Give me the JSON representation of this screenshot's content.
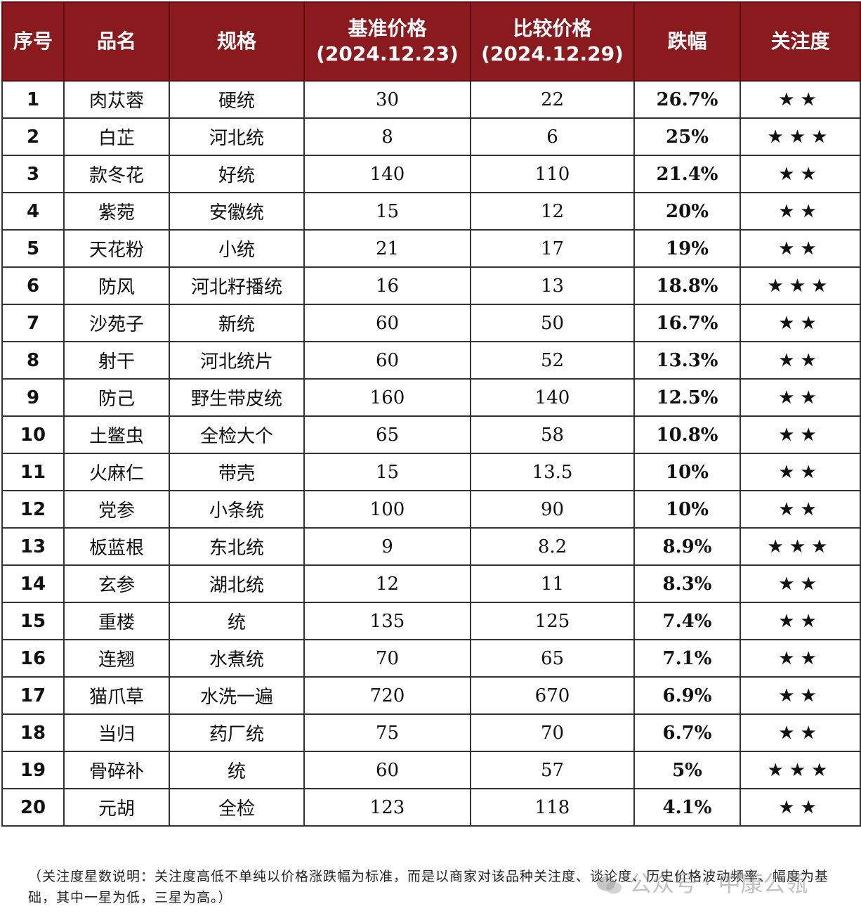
{
  "table": {
    "headers": {
      "seq": "序号",
      "name": "品名",
      "spec": "规格",
      "base_price_title": "基准价格",
      "base_price_date": "(2024.12.23)",
      "compare_price_title": "比较价格",
      "compare_price_date": "(2024.12.29)",
      "change": "跌幅",
      "attention": "关注度"
    },
    "rows": [
      {
        "seq": "1",
        "name": "肉苁蓉",
        "spec": "硬统",
        "base": "30",
        "compare": "22",
        "change": "26.7%",
        "stars": "★★"
      },
      {
        "seq": "2",
        "name": "白芷",
        "spec": "河北统",
        "base": "8",
        "compare": "6",
        "change": "25%",
        "stars": "★★★"
      },
      {
        "seq": "3",
        "name": "款冬花",
        "spec": "好统",
        "base": "140",
        "compare": "110",
        "change": "21.4%",
        "stars": "★★"
      },
      {
        "seq": "4",
        "name": "紫菀",
        "spec": "安徽统",
        "base": "15",
        "compare": "12",
        "change": "20%",
        "stars": "★★"
      },
      {
        "seq": "5",
        "name": "天花粉",
        "spec": "小统",
        "base": "21",
        "compare": "17",
        "change": "19%",
        "stars": "★★"
      },
      {
        "seq": "6",
        "name": "防风",
        "spec": "河北籽播统",
        "base": "16",
        "compare": "13",
        "change": "18.8%",
        "stars": "★★★"
      },
      {
        "seq": "7",
        "name": "沙苑子",
        "spec": "新统",
        "base": "60",
        "compare": "50",
        "change": "16.7%",
        "stars": "★★"
      },
      {
        "seq": "8",
        "name": "射干",
        "spec": "河北统片",
        "base": "60",
        "compare": "52",
        "change": "13.3%",
        "stars": "★★"
      },
      {
        "seq": "9",
        "name": "防己",
        "spec": "野生带皮统",
        "base": "160",
        "compare": "140",
        "change": "12.5%",
        "stars": "★★"
      },
      {
        "seq": "10",
        "name": "土鳖虫",
        "spec": "全检大个",
        "base": "65",
        "compare": "58",
        "change": "10.8%",
        "stars": "★★"
      },
      {
        "seq": "11",
        "name": "火麻仁",
        "spec": "带壳",
        "base": "15",
        "compare": "13.5",
        "change": "10%",
        "stars": "★★"
      },
      {
        "seq": "12",
        "name": "党参",
        "spec": "小条统",
        "base": "100",
        "compare": "90",
        "change": "10%",
        "stars": "★★"
      },
      {
        "seq": "13",
        "name": "板蓝根",
        "spec": "东北统",
        "base": "9",
        "compare": "8.2",
        "change": "8.9%",
        "stars": "★★★"
      },
      {
        "seq": "14",
        "name": "玄参",
        "spec": "湖北统",
        "base": "12",
        "compare": "11",
        "change": "8.3%",
        "stars": "★★"
      },
      {
        "seq": "15",
        "name": "重楼",
        "spec": "统",
        "base": "135",
        "compare": "125",
        "change": "7.4%",
        "stars": "★★"
      },
      {
        "seq": "16",
        "name": "连翘",
        "spec": "水煮统",
        "base": "70",
        "compare": "65",
        "change": "7.1%",
        "stars": "★★"
      },
      {
        "seq": "17",
        "name": "猫爪草",
        "spec": "水洗一遍",
        "base": "720",
        "compare": "670",
        "change": "6.9%",
        "stars": "★★"
      },
      {
        "seq": "18",
        "name": "当归",
        "spec": "药厂统",
        "base": "75",
        "compare": "70",
        "change": "6.7%",
        "stars": "★★"
      },
      {
        "seq": "19",
        "name": "骨碎补",
        "spec": "统",
        "base": "60",
        "compare": "57",
        "change": "5%",
        "stars": "★★★"
      },
      {
        "seq": "20",
        "name": "元胡",
        "spec": "全检",
        "base": "123",
        "compare": "118",
        "change": "4.1%",
        "stars": "★★"
      }
    ]
  },
  "note": "（关注度星数说明：关注度高低不单纯以价格涨跌幅为标准，而是以商家对该品种关注度、谈论度、历史价格波动频率、幅度为基础，其中一星为低，三星为高。）",
  "watermark": "公众号 · 中康公瓴",
  "colors": {
    "header_bg": "#8b1a1f",
    "change_text": "#1f9a2c",
    "star": "#f3b21c"
  }
}
